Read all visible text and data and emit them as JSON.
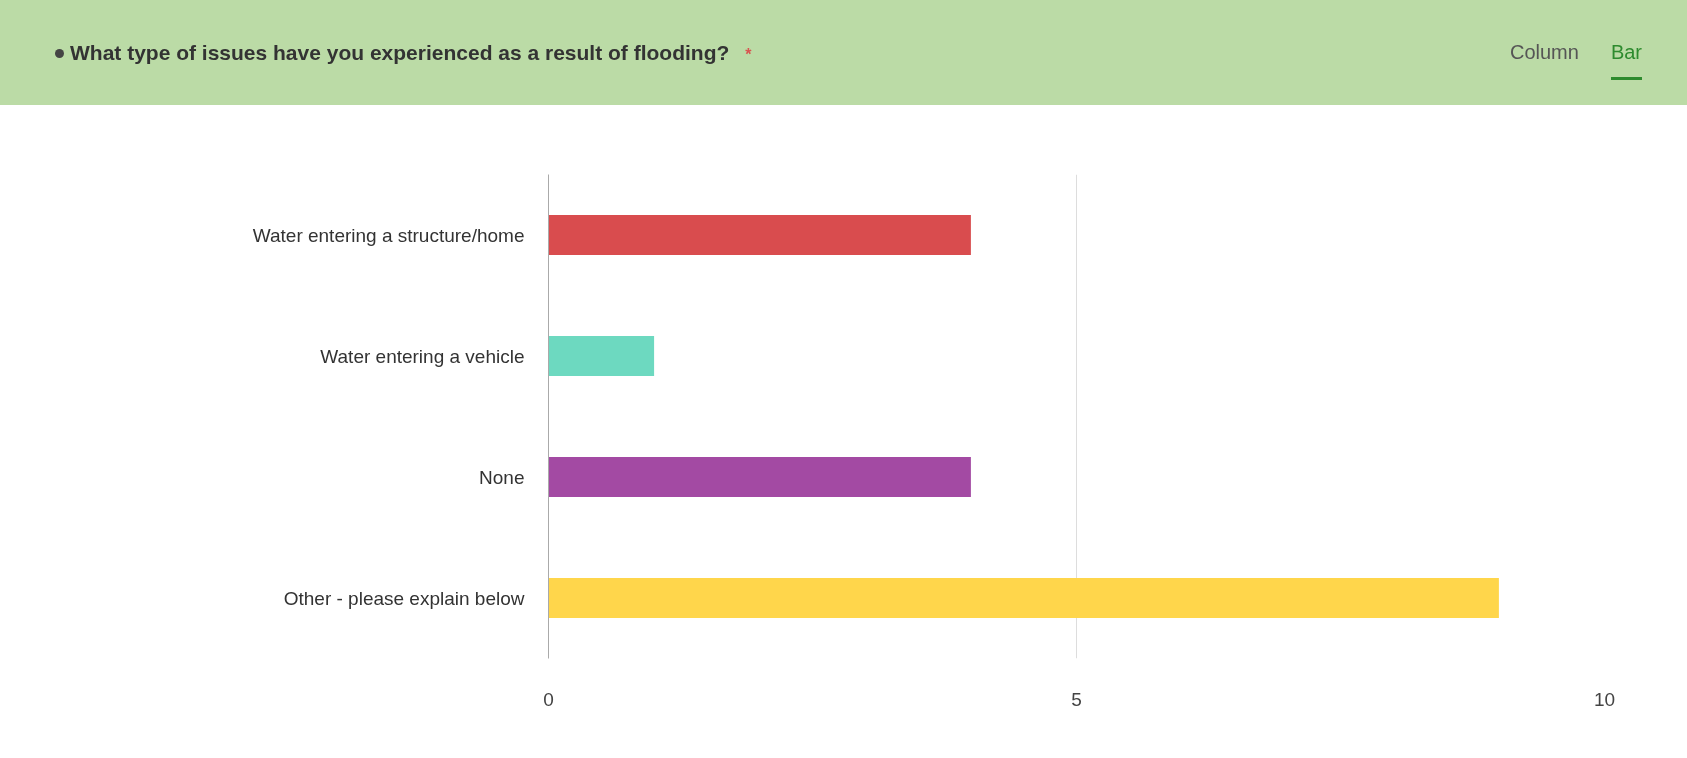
{
  "chart_data": {
    "type": "bar",
    "orientation": "horizontal",
    "title": "What type of issues have you experienced as a result of flooding?",
    "annotations": [
      "*",
      "Column",
      "Bar"
    ],
    "categories": [
      "Water entering a structure/home",
      "Water entering a vehicle",
      "None",
      "Other - please explain below"
    ],
    "values": [
      4,
      1,
      4,
      9
    ],
    "colors": [
      "#d94c4e",
      "#6dd9c0",
      "#a34aa3",
      "#ffd64b"
    ],
    "xlim": [
      0,
      10
    ],
    "xticks": [
      0,
      5,
      10
    ],
    "grid": "x"
  }
}
